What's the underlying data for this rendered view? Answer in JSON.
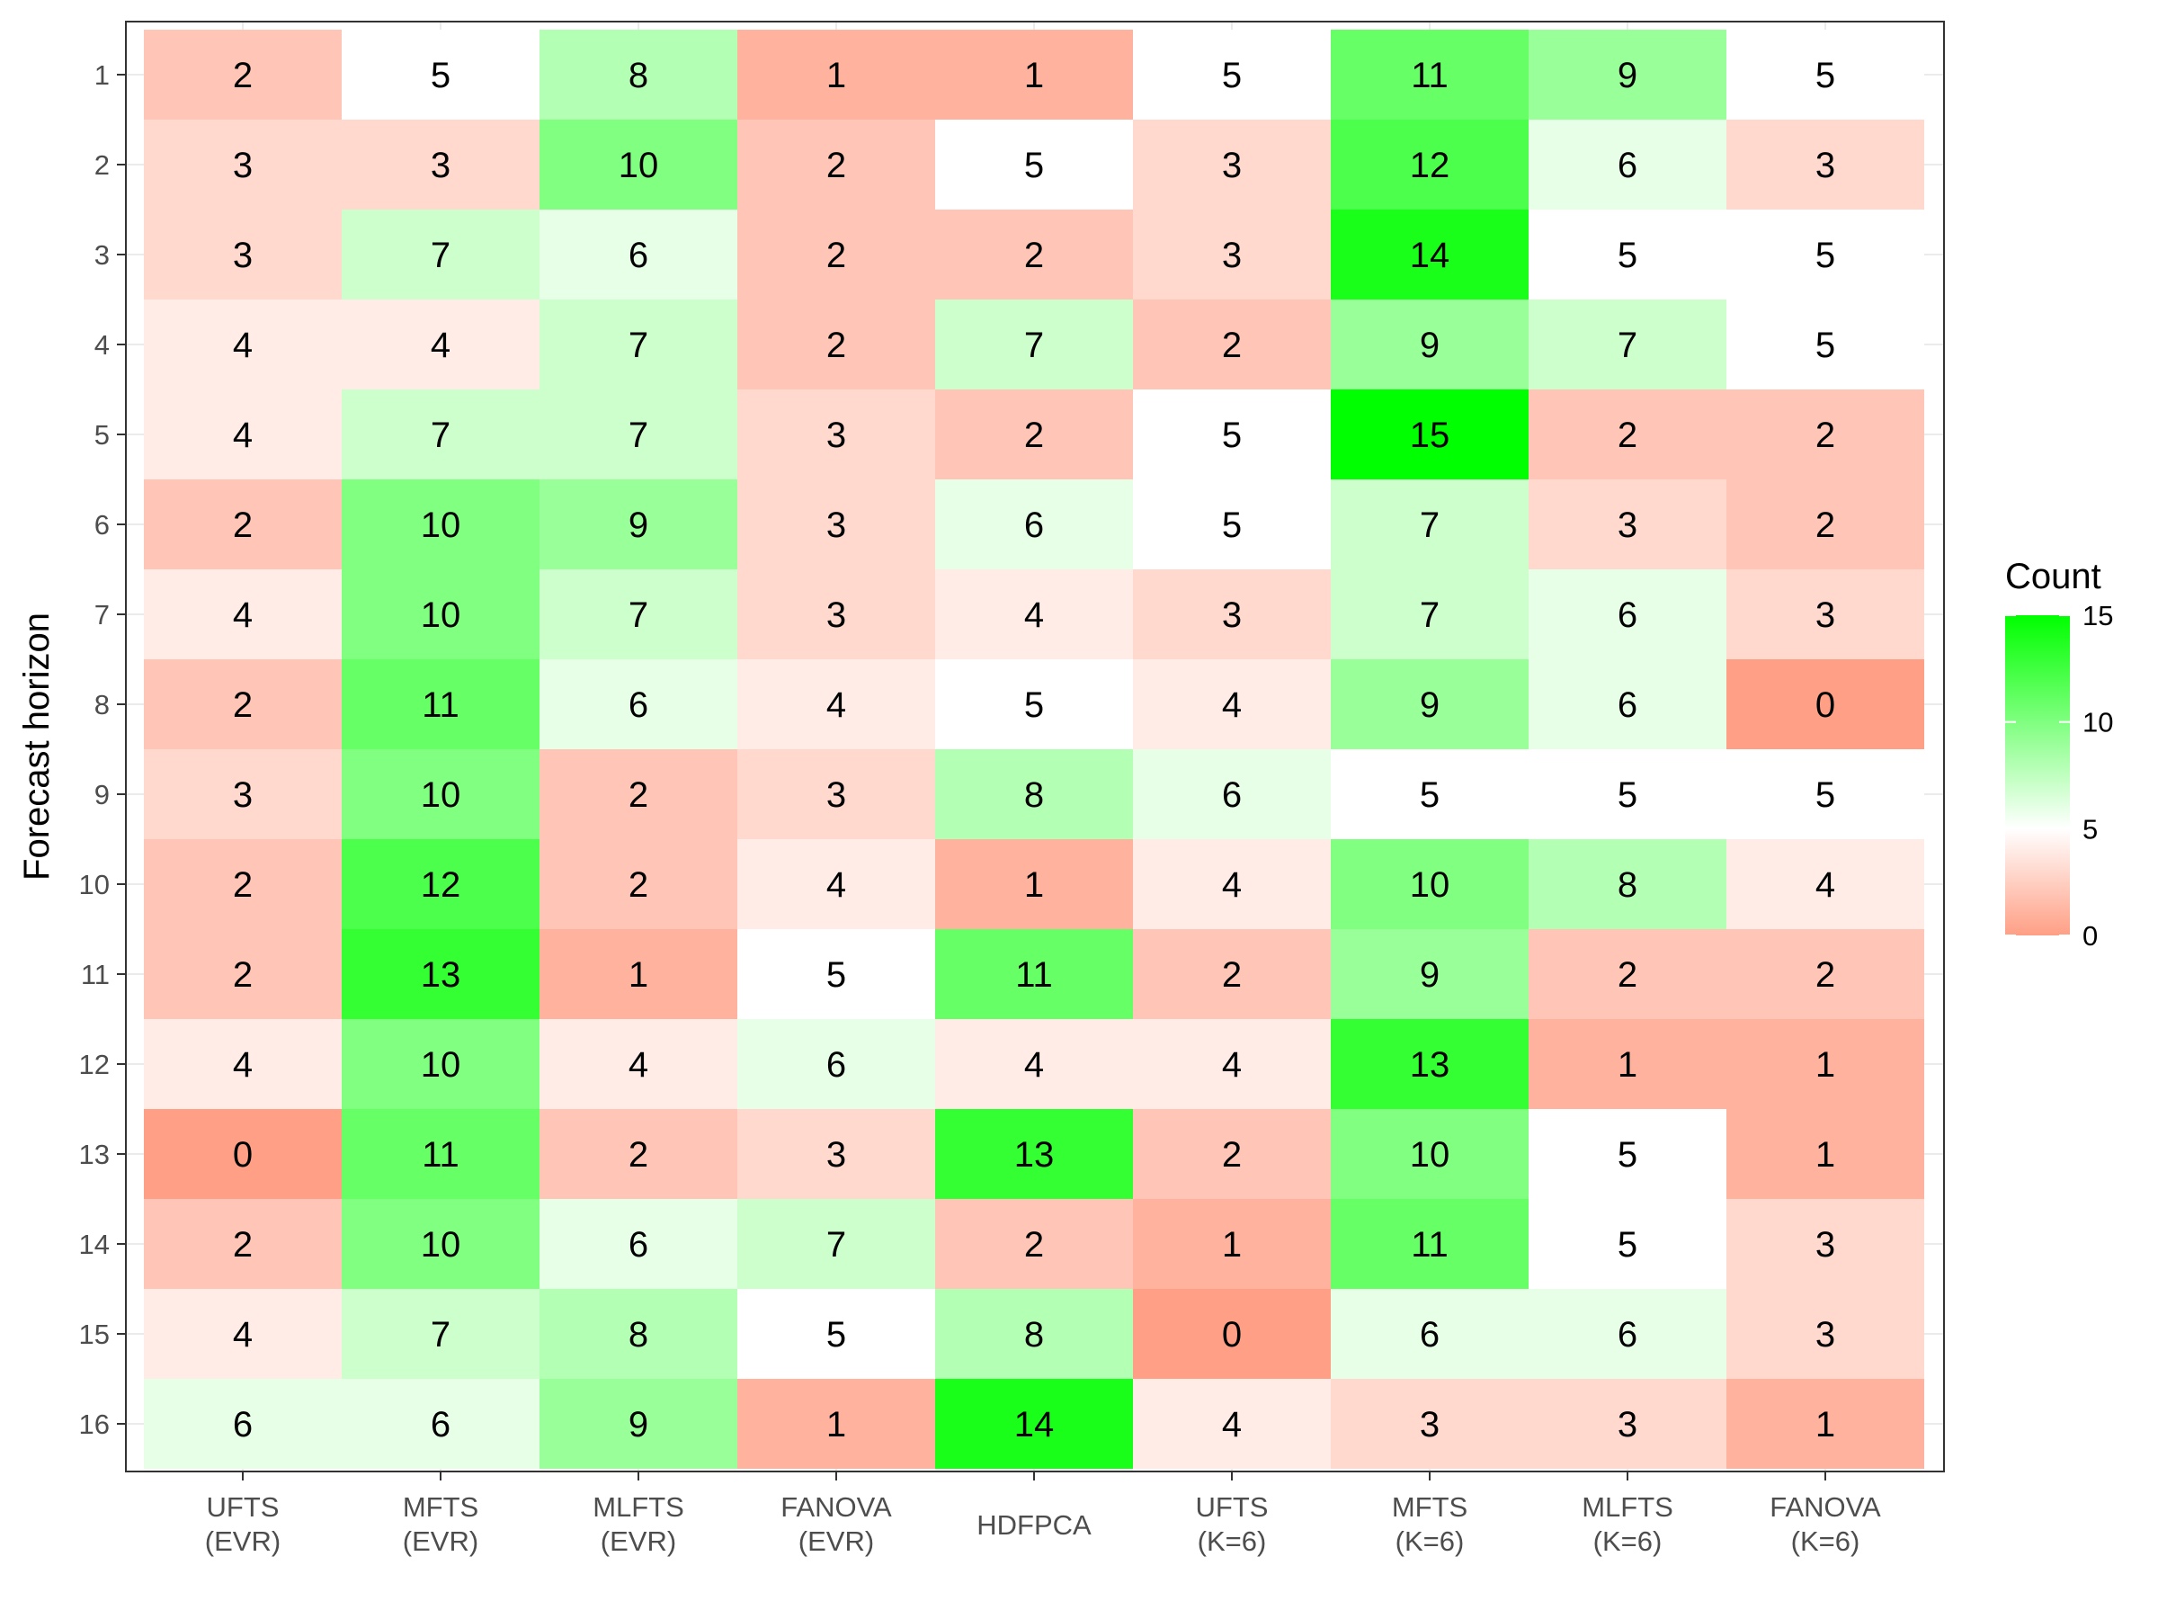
{
  "chart_data": {
    "type": "heatmap",
    "title": "",
    "xlabel": "",
    "ylabel": "Forecast horizon",
    "x_categories": [
      [
        "UFTS",
        "(EVR)"
      ],
      [
        "MFTS",
        "(EVR)"
      ],
      [
        "MLFTS",
        "(EVR)"
      ],
      [
        "FANOVA",
        "(EVR)"
      ],
      [
        "HDFPCA"
      ],
      [
        "UFTS",
        "(K=6)"
      ],
      [
        "MFTS",
        "(K=6)"
      ],
      [
        "MLFTS",
        "(K=6)"
      ],
      [
        "FANOVA",
        "(K=6)"
      ]
    ],
    "y_categories": [
      "1",
      "2",
      "3",
      "4",
      "5",
      "6",
      "7",
      "8",
      "9",
      "10",
      "11",
      "12",
      "13",
      "14",
      "15",
      "16"
    ],
    "values": [
      [
        2,
        5,
        8,
        1,
        1,
        5,
        11,
        9,
        5
      ],
      [
        3,
        3,
        10,
        2,
        5,
        3,
        12,
        6,
        3
      ],
      [
        3,
        7,
        6,
        2,
        2,
        3,
        14,
        5,
        5
      ],
      [
        4,
        4,
        7,
        2,
        7,
        2,
        9,
        7,
        5
      ],
      [
        4,
        7,
        7,
        3,
        2,
        5,
        15,
        2,
        2
      ],
      [
        2,
        10,
        9,
        3,
        6,
        5,
        7,
        3,
        2
      ],
      [
        4,
        10,
        7,
        3,
        4,
        3,
        7,
        6,
        3
      ],
      [
        2,
        11,
        6,
        4,
        5,
        4,
        9,
        6,
        0
      ],
      [
        3,
        10,
        2,
        3,
        8,
        6,
        5,
        5,
        5
      ],
      [
        2,
        12,
        2,
        4,
        1,
        4,
        10,
        8,
        4
      ],
      [
        2,
        13,
        1,
        5,
        11,
        2,
        9,
        2,
        2
      ],
      [
        4,
        10,
        4,
        6,
        4,
        4,
        13,
        1,
        1
      ],
      [
        0,
        11,
        2,
        3,
        13,
        2,
        10,
        5,
        1
      ],
      [
        2,
        10,
        6,
        7,
        2,
        1,
        11,
        5,
        3
      ],
      [
        4,
        7,
        8,
        5,
        8,
        0,
        6,
        6,
        3
      ],
      [
        6,
        6,
        9,
        1,
        14,
        4,
        3,
        3,
        1
      ]
    ],
    "color_scale": {
      "low": "#ff9f85",
      "mid": "#ffffff",
      "high": "#00ff00",
      "midpoint": 5,
      "limits": [
        0,
        15
      ]
    },
    "legend": {
      "title": "Count",
      "ticks": [
        0,
        5,
        10,
        15
      ],
      "position": "right"
    },
    "grid": true
  }
}
